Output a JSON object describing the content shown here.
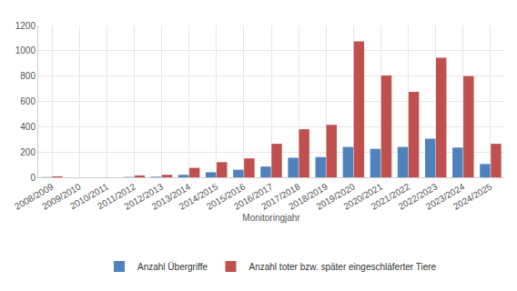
{
  "chart_data": {
    "type": "bar",
    "x_label": "Monitoringjahr",
    "categories": [
      "2008/2009",
      "2009/2010",
      "2010/2011",
      "2011/2012",
      "2012/2013",
      "2013/2014",
      "2014/2015",
      "2015/2016",
      "2016/2017",
      "2017/2018",
      "2018/2019",
      "2019/2020",
      "2020/2021",
      "2021/2022",
      "2022/2023",
      "2023/2024",
      "2024/2025"
    ],
    "series": [
      {
        "name": "Anzahl Übergriffe",
        "color": "#4f81bd",
        "values": [
          2,
          0,
          0,
          3,
          5,
          20,
          40,
          60,
          85,
          155,
          160,
          240,
          225,
          240,
          305,
          235,
          105
        ]
      },
      {
        "name": "Anzahl toter bzw. später eingeschläferter Tiere",
        "color": "#c0504d",
        "values": [
          8,
          0,
          0,
          15,
          20,
          75,
          120,
          150,
          265,
          380,
          415,
          1075,
          805,
          675,
          945,
          800,
          265
        ]
      }
    ],
    "ylim": [
      0,
      1200
    ],
    "yticks": [
      0,
      200,
      400,
      600,
      800,
      1000,
      1200
    ],
    "grid": true,
    "legend": "bottom"
  }
}
